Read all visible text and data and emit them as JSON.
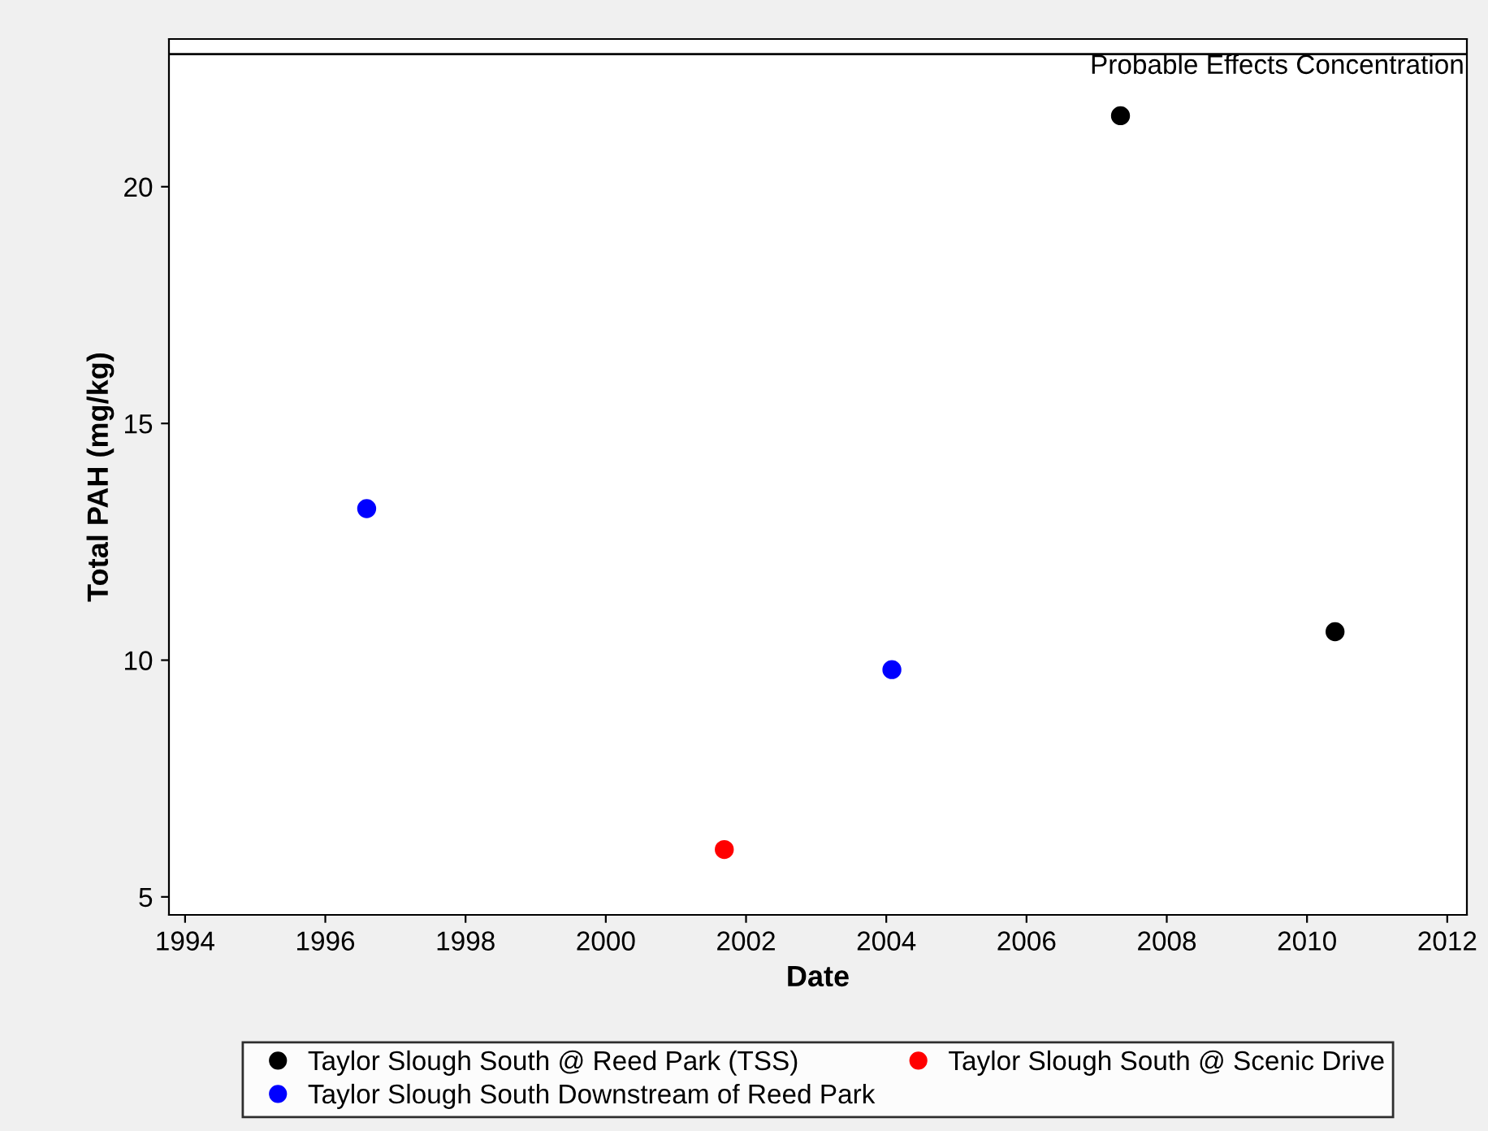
{
  "chart_data": {
    "type": "scatter",
    "xlabel": "Date",
    "ylabel": "Total PAH (mg/kg)",
    "series": [
      {
        "name": "Taylor Slough South @ Reed Park (TSS)",
        "color": "#000000",
        "x": [
          2007.34,
          2010.4
        ],
        "values": [
          21.5,
          10.6
        ]
      },
      {
        "name": "Taylor Slough South Downstream of Reed Park",
        "color": "#0000ff",
        "x": [
          1996.59,
          2004.08
        ],
        "values": [
          13.2,
          9.8
        ]
      },
      {
        "name": "Taylor Slough South @ Scenic Drive",
        "color": "#ff0000",
        "x": [
          2001.69
        ],
        "values": [
          6.0
        ]
      }
    ],
    "xlim": [
      1993.77,
      2012.28
    ],
    "xticks": [
      1994,
      1996,
      1998,
      2000,
      2002,
      2004,
      2006,
      2008,
      2010,
      2012
    ],
    "ylim": [
      4.62,
      23.12
    ],
    "yticks": [
      5,
      10,
      15,
      20
    ],
    "ref_lines": [
      {
        "axis": "y",
        "value": 22.8,
        "label": "Probable Effects Concentration",
        "color": "#000000"
      }
    ],
    "marker": "circle",
    "legend": "bottom",
    "grid": false
  }
}
